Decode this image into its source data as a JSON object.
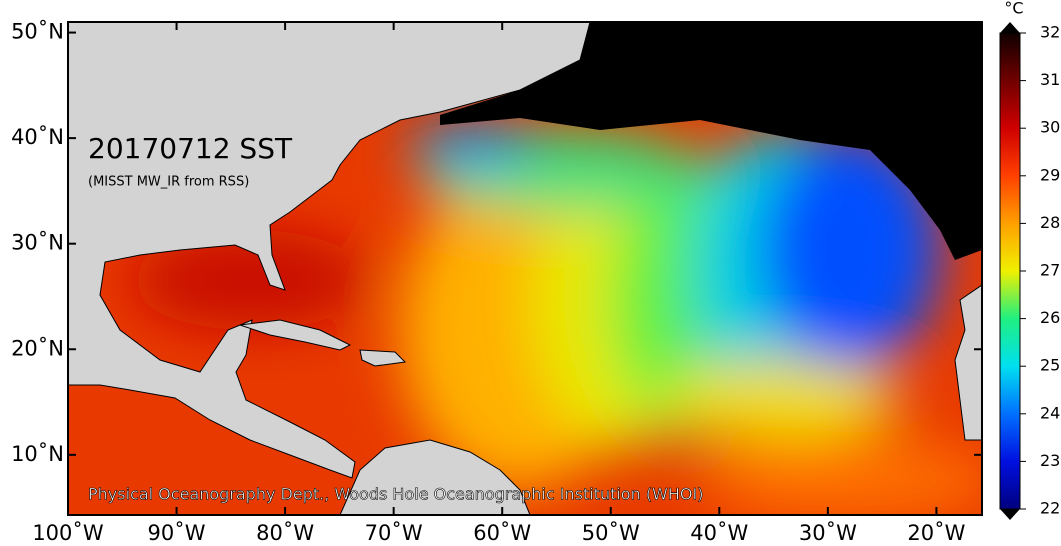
{
  "map": {
    "title": "20170712 SST",
    "subtitle": "(MISST MW_IR from RSS)",
    "credit": "Physical Oceanography Dept., Woods Hole Oceanographic Institution (WHOI)",
    "xlim": [
      -100,
      -15.8
    ],
    "ylim": [
      4.3,
      51
    ],
    "xticks": [
      {
        "value": -100,
        "label": "100˚W"
      },
      {
        "value": -90,
        "label": "90˚W"
      },
      {
        "value": -80,
        "label": "80˚W"
      },
      {
        "value": -70,
        "label": "70˚W"
      },
      {
        "value": -60,
        "label": "60˚W"
      },
      {
        "value": -50,
        "label": "50˚W"
      },
      {
        "value": -40,
        "label": "40˚W"
      },
      {
        "value": -30,
        "label": "30˚W"
      },
      {
        "value": -20,
        "label": "20˚W"
      }
    ],
    "yticks": [
      {
        "value": 10,
        "label": "10˚N"
      },
      {
        "value": 20,
        "label": "20˚N"
      },
      {
        "value": 30,
        "label": "30˚N"
      },
      {
        "value": 40,
        "label": "40˚N"
      },
      {
        "value": 50,
        "label": "50˚N"
      }
    ],
    "colorbar": {
      "unit": "°C",
      "lim": [
        22,
        32
      ],
      "ticks": [
        22,
        23,
        24,
        25,
        26,
        27,
        28,
        29,
        30,
        31,
        32
      ]
    }
  }
}
